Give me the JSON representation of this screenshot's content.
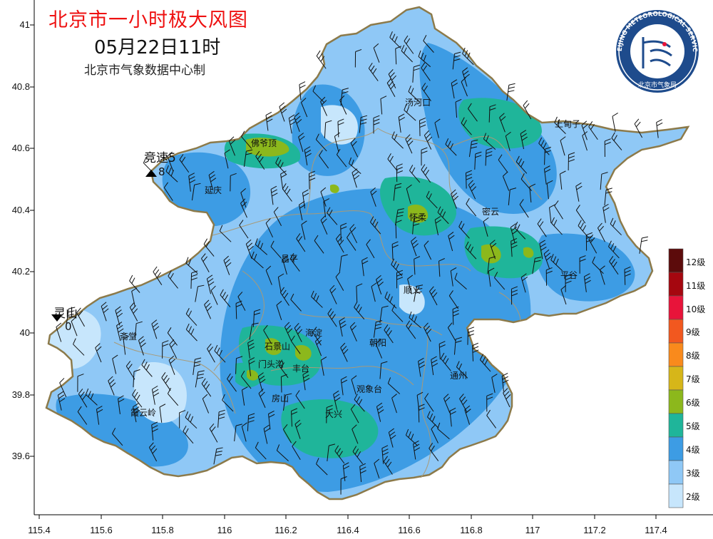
{
  "title": {
    "main": "北京市一小时极大风图",
    "time": "05月22日11时",
    "producer": "北京市气象数据中心制"
  },
  "logo": {
    "ring_text": "BEIJING METEOROLOGICAL SERVICE",
    "bottom_text": "北京市气象局"
  },
  "axes": {
    "x_ticks": [
      "115.4",
      "115.6",
      "115.8",
      "116",
      "116.2",
      "116.4",
      "116.6",
      "116.8",
      "117",
      "117.2",
      "117.4"
    ],
    "y_ticks": [
      "41",
      "40.8",
      "40.6",
      "40.4",
      "40.2",
      "40",
      "39.8",
      "39.6"
    ]
  },
  "places": [
    {
      "name": "汤河口",
      "id": "tanghekou"
    },
    {
      "name": "上甸子",
      "id": "shangdianzi"
    },
    {
      "name": "佛爷顶",
      "id": "foyeding"
    },
    {
      "name": "延庆",
      "id": "yanqing"
    },
    {
      "name": "怀柔",
      "id": "huairou"
    },
    {
      "name": "密云",
      "id": "miyun"
    },
    {
      "name": "昌平",
      "id": "changping"
    },
    {
      "name": "平谷",
      "id": "pinggu"
    },
    {
      "name": "顺义",
      "id": "shunyi"
    },
    {
      "name": "斋堂",
      "id": "zhaitang"
    },
    {
      "name": "海淀",
      "id": "haidian"
    },
    {
      "name": "朝阳",
      "id": "chaoyang"
    },
    {
      "name": "石景山",
      "id": "shijingshan"
    },
    {
      "name": "门头沟",
      "id": "mentougou"
    },
    {
      "name": "丰台",
      "id": "fengtai"
    },
    {
      "name": "通州",
      "id": "tongzhou"
    },
    {
      "name": "观象台",
      "id": "guanxiangtai"
    },
    {
      "name": "房山",
      "id": "fangshan"
    },
    {
      "name": "大兴",
      "id": "daxing"
    },
    {
      "name": "霞云岭",
      "id": "xiayunling"
    }
  ],
  "stations": [
    {
      "name": "竞速5",
      "value": "8",
      "marker": "up-triangle"
    },
    {
      "name": "灵山",
      "value": "0",
      "marker": "down-triangle"
    }
  ],
  "legend": {
    "levels": [
      {
        "label": "12级",
        "color": "#5c0b0b"
      },
      {
        "label": "11级",
        "color": "#a5070f"
      },
      {
        "label": "10级",
        "color": "#e8143a"
      },
      {
        "label": "9级",
        "color": "#f2581f"
      },
      {
        "label": "8级",
        "color": "#f98a1c"
      },
      {
        "label": "7级",
        "color": "#d6b619"
      },
      {
        "label": "6级",
        "color": "#8cb81c"
      },
      {
        "label": "5级",
        "color": "#1fb59a"
      },
      {
        "label": "4级",
        "color": "#3d9ce4"
      },
      {
        "label": "3级",
        "color": "#8fc8f6"
      },
      {
        "label": "2级",
        "color": "#c7e6fc"
      }
    ]
  }
}
